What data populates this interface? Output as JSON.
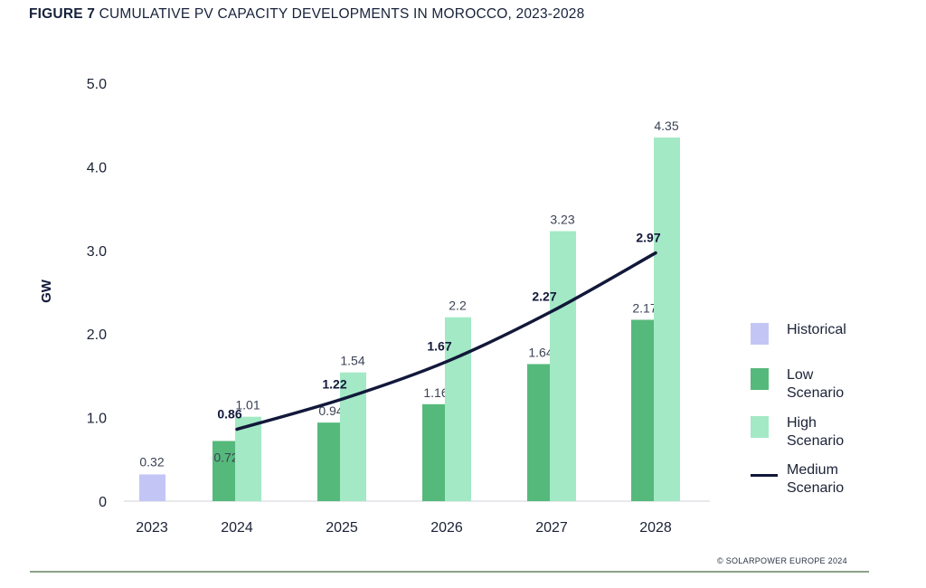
{
  "title": {
    "lead": "FIGURE 7",
    "text": "CUMULATIVE PV CAPACITY DEVELOPMENTS IN MOROCCO, 2023-2028"
  },
  "source": "© SOLARPOWER EUROPE 2024",
  "legend": {
    "historical": "Historical",
    "low": "Low Scenario",
    "high": "High Scenario",
    "medium": "Medium Scenario"
  },
  "chart_data": {
    "type": "bar",
    "title": "CUMULATIVE PV CAPACITY DEVELOPMENTS IN MOROCCO, 2023-2028",
    "xlabel": "",
    "ylabel": "GW",
    "ylim": [
      0,
      5
    ],
    "yticks": [
      0,
      1,
      2,
      3,
      4,
      5
    ],
    "ytick_labels": [
      "0",
      "1.0",
      "2.0",
      "3.0",
      "4.0",
      "5.0"
    ],
    "categories": [
      "2023",
      "2024",
      "2025",
      "2026",
      "2027",
      "2028"
    ],
    "series": [
      {
        "name": "Historical",
        "kind": "bar",
        "color": "#c3c6f5",
        "values": [
          0.32,
          null,
          null,
          null,
          null,
          null
        ],
        "labels": [
          "0.32",
          null,
          null,
          null,
          null,
          null
        ]
      },
      {
        "name": "Low Scenario",
        "kind": "bar",
        "color": "#56b97c",
        "values": [
          null,
          0.72,
          0.94,
          1.16,
          1.64,
          2.17
        ],
        "labels": [
          null,
          "0.72",
          "0.94",
          "1.16",
          "1.64",
          "2.17"
        ]
      },
      {
        "name": "High Scenario",
        "kind": "bar",
        "color": "#a3e9c5",
        "values": [
          null,
          1.01,
          1.54,
          2.2,
          3.23,
          4.35
        ],
        "labels": [
          null,
          "1.01",
          "1.54",
          "2.2",
          "3.23",
          "4.35"
        ]
      },
      {
        "name": "Medium Scenario",
        "kind": "line",
        "color": "#12183a",
        "values": [
          null,
          0.86,
          1.22,
          1.67,
          2.27,
          2.97
        ],
        "labels": [
          null,
          "0.86",
          "1.22",
          "1.67",
          "2.27",
          "2.97"
        ]
      }
    ],
    "grid": false,
    "legend_position": "right"
  }
}
